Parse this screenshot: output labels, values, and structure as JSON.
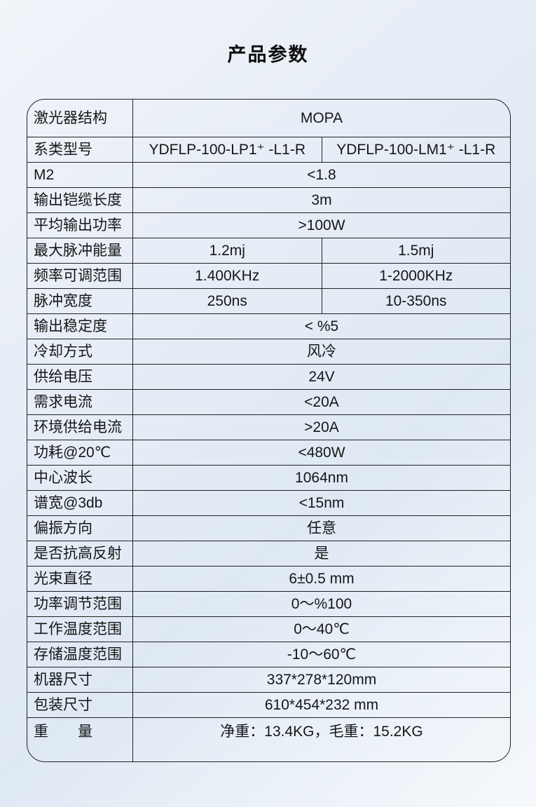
{
  "page_title": "产品参数",
  "colors": {
    "border": "#222222",
    "text": "#161616",
    "background_start": "#f1f4f9",
    "background_end": "#f6f9fc"
  },
  "table": {
    "rows": [
      {
        "label": "激光器结构",
        "values": [
          "MOPA"
        ]
      },
      {
        "label": "系类型号",
        "values": [
          "YDFLP-100-LP1⁺ -L1-R",
          "YDFLP-100-LM1⁺ -L1-R"
        ]
      },
      {
        "label": "M2",
        "values": [
          "<1.8"
        ]
      },
      {
        "label": "输出铠缆长度",
        "values": [
          "3m"
        ]
      },
      {
        "label": "平均输出功率",
        "values": [
          ">100W"
        ]
      },
      {
        "label": "最大脉冲能量",
        "values": [
          "1.2mj",
          "1.5mj"
        ]
      },
      {
        "label": "频率可调范围",
        "values": [
          "1.400KHz",
          "1-2000KHz"
        ]
      },
      {
        "label": "脉冲宽度",
        "values": [
          "250ns",
          "10-350ns"
        ]
      },
      {
        "label": "输出稳定度",
        "values": [
          "< %5"
        ]
      },
      {
        "label": "冷却方式",
        "values": [
          "风冷"
        ]
      },
      {
        "label": "供给电压",
        "values": [
          "24V"
        ]
      },
      {
        "label": "需求电流",
        "values": [
          "<20A"
        ]
      },
      {
        "label": "环境供给电流",
        "values": [
          ">20A"
        ]
      },
      {
        "label": "功耗@20℃",
        "values": [
          "<480W"
        ]
      },
      {
        "label": "中心波长",
        "values": [
          "1064nm"
        ]
      },
      {
        "label": "谱宽@3db",
        "values": [
          "<15nm"
        ]
      },
      {
        "label": "偏振方向",
        "values": [
          "任意"
        ]
      },
      {
        "label": "是否抗高反射",
        "values": [
          "是"
        ]
      },
      {
        "label": "光束直径",
        "values": [
          "6±0.5 mm"
        ]
      },
      {
        "label": "功率调节范围",
        "values": [
          "0～%100"
        ]
      },
      {
        "label": "工作温度范围",
        "values": [
          "0～40℃"
        ]
      },
      {
        "label": "存储温度范围",
        "values": [
          "-10～60℃"
        ]
      },
      {
        "label": "机器尺寸",
        "values": [
          "337*278*120mm"
        ]
      },
      {
        "label": "包装尺寸",
        "values": [
          "610*454*232 mm"
        ]
      },
      {
        "label": "重　　量",
        "values": [
          "净重：13.4KG，毛重：15.2KG"
        ]
      }
    ]
  }
}
